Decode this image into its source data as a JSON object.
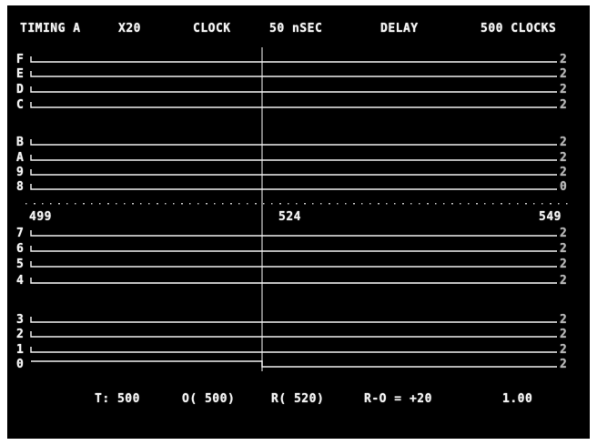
{
  "header": {
    "mode": "TIMING A",
    "multiplier": "X20",
    "clock_label": "CLOCK",
    "clock_value": "50 nSEC",
    "delay_label": "DELAY",
    "delay_value": "500 CLOCKS"
  },
  "upper_section": {
    "channels": [
      "F",
      "E",
      "D",
      "C",
      "B",
      "A",
      "9",
      "8"
    ],
    "end_markers": [
      "2",
      "2",
      "2",
      "2",
      "2",
      "2",
      "2",
      "0"
    ]
  },
  "scale": {
    "left": "499",
    "center": "524",
    "right": "549"
  },
  "lower_section": {
    "channels": [
      "7",
      "6",
      "5",
      "4",
      "3",
      "2",
      "1",
      "0"
    ],
    "end_markers": [
      "2",
      "2",
      "2",
      "2",
      "2",
      "2",
      "2",
      "2"
    ]
  },
  "status_bar": {
    "trigger": "T: 500",
    "cursor_o": "O( 500)",
    "cursor_r": "R( 520)",
    "difference": "R-O = +20",
    "time": "1.00"
  },
  "colors": {
    "screen_background": "#000000",
    "trace": "#f2f2f2",
    "frame": "#ffffff"
  }
}
